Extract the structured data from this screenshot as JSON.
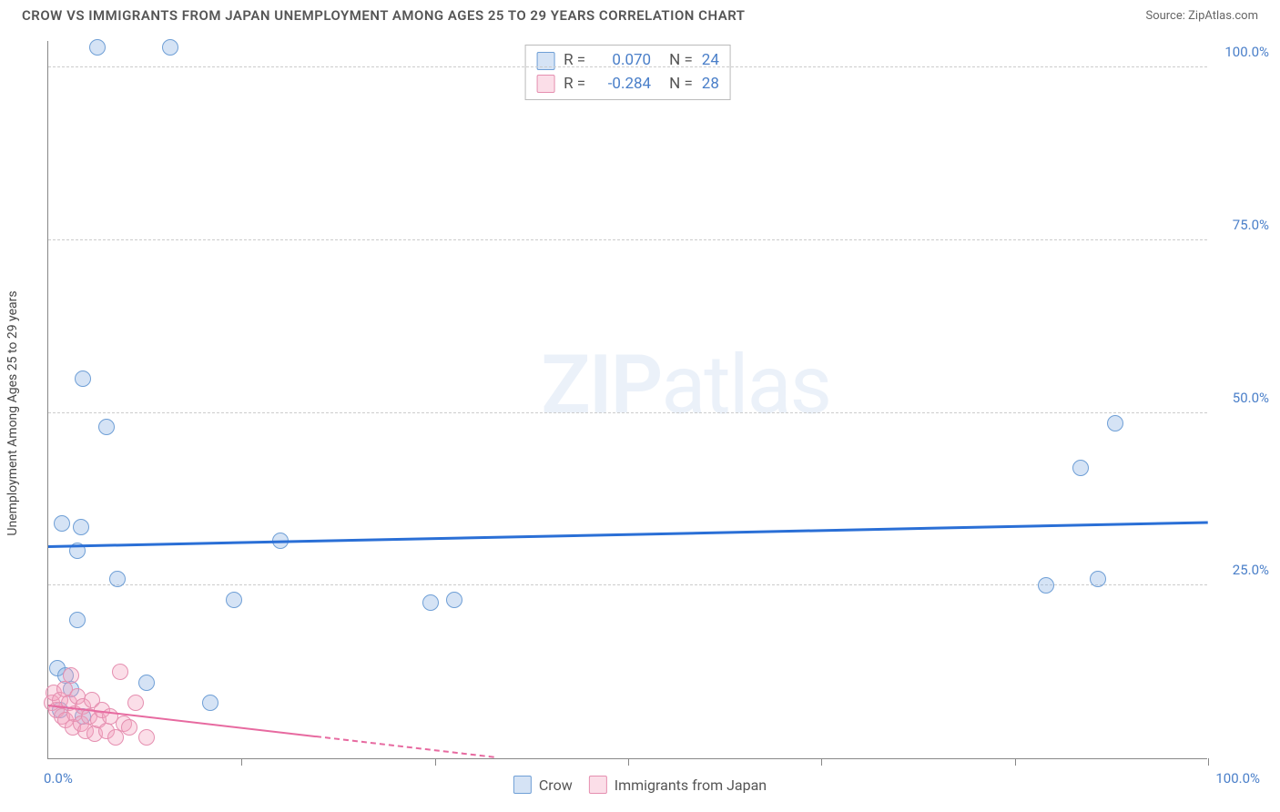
{
  "title": "CROW VS IMMIGRANTS FROM JAPAN UNEMPLOYMENT AMONG AGES 25 TO 29 YEARS CORRELATION CHART",
  "source_label": "Source: ZipAtlas.com",
  "ylabel": "Unemployment Among Ages 25 to 29 years",
  "watermark_bold": "ZIP",
  "watermark_light": "atlas",
  "chart": {
    "type": "scatter",
    "xlim": [
      0,
      100
    ],
    "ylim": [
      0,
      104
    ],
    "background_color": "#ffffff",
    "grid_color": "#cccccc",
    "axis_color": "#888888",
    "tick_color": "#4a7fc9",
    "yticks": [
      {
        "val": 25,
        "label": "25.0%"
      },
      {
        "val": 50,
        "label": "50.0%"
      },
      {
        "val": 75,
        "label": "75.0%"
      },
      {
        "val": 100,
        "label": "100.0%"
      }
    ],
    "xtick_marks": [
      16.67,
      33.33,
      50,
      66.67,
      83.33,
      100
    ],
    "xtick_left": "0.0%",
    "xtick_right": "100.0%"
  },
  "series": [
    {
      "name": "Crow",
      "color_fill": "rgba(135,176,226,0.35)",
      "color_stroke": "#6f9fd6",
      "marker_r": 9,
      "R_label": "R =",
      "R": "0.070",
      "N_label": "N =",
      "N": "24",
      "trend": {
        "y_at_x0": 30.5,
        "y_at_x100": 34.0,
        "color": "#2a6fd6",
        "width": 2.5
      },
      "points": [
        {
          "x": 4.2,
          "y": 103
        },
        {
          "x": 10.5,
          "y": 103
        },
        {
          "x": 3.0,
          "y": 55
        },
        {
          "x": 5.0,
          "y": 48
        },
        {
          "x": 92,
          "y": 48.5
        },
        {
          "x": 89,
          "y": 42
        },
        {
          "x": 1.2,
          "y": 34
        },
        {
          "x": 2.8,
          "y": 33.5
        },
        {
          "x": 2.5,
          "y": 30
        },
        {
          "x": 20,
          "y": 31.5
        },
        {
          "x": 6.0,
          "y": 26
        },
        {
          "x": 16,
          "y": 23
        },
        {
          "x": 33,
          "y": 22.5
        },
        {
          "x": 35,
          "y": 23
        },
        {
          "x": 86,
          "y": 25
        },
        {
          "x": 90.5,
          "y": 26
        },
        {
          "x": 2.5,
          "y": 20
        },
        {
          "x": 0.8,
          "y": 13
        },
        {
          "x": 1.5,
          "y": 12
        },
        {
          "x": 2.0,
          "y": 10
        },
        {
          "x": 8.5,
          "y": 11
        },
        {
          "x": 14,
          "y": 8
        },
        {
          "x": 1.0,
          "y": 7
        },
        {
          "x": 3.0,
          "y": 6
        }
      ]
    },
    {
      "name": "Immigrants from Japan",
      "color_fill": "rgba(244,160,190,0.35)",
      "color_stroke": "#e58fb0",
      "marker_r": 9,
      "R_label": "R =",
      "R": "-0.284",
      "N_label": "N =",
      "N": "28",
      "trend": {
        "y_at_x0": 7.5,
        "y_at_x100": -12,
        "color": "#e76aa0",
        "width": 2
      },
      "points": [
        {
          "x": 0.3,
          "y": 8
        },
        {
          "x": 0.5,
          "y": 9.5
        },
        {
          "x": 0.7,
          "y": 7
        },
        {
          "x": 1.0,
          "y": 8.5
        },
        {
          "x": 1.2,
          "y": 6
        },
        {
          "x": 1.4,
          "y": 10
        },
        {
          "x": 1.5,
          "y": 5.5
        },
        {
          "x": 1.8,
          "y": 8
        },
        {
          "x": 2.0,
          "y": 12
        },
        {
          "x": 2.1,
          "y": 4.5
        },
        {
          "x": 2.3,
          "y": 6.5
        },
        {
          "x": 2.5,
          "y": 9
        },
        {
          "x": 2.8,
          "y": 5
        },
        {
          "x": 3.0,
          "y": 7.5
        },
        {
          "x": 3.2,
          "y": 4
        },
        {
          "x": 3.5,
          "y": 6
        },
        {
          "x": 3.8,
          "y": 8.5
        },
        {
          "x": 4.0,
          "y": 3.5
        },
        {
          "x": 4.3,
          "y": 5.5
        },
        {
          "x": 4.6,
          "y": 7
        },
        {
          "x": 5.0,
          "y": 4
        },
        {
          "x": 5.3,
          "y": 6
        },
        {
          "x": 5.8,
          "y": 3
        },
        {
          "x": 6.2,
          "y": 12.5
        },
        {
          "x": 6.5,
          "y": 5
        },
        {
          "x": 7.0,
          "y": 4.5
        },
        {
          "x": 7.5,
          "y": 8
        },
        {
          "x": 8.5,
          "y": 3
        }
      ]
    }
  ],
  "legend_bottom": [
    {
      "swatch_fill": "rgba(135,176,226,0.35)",
      "swatch_stroke": "#6f9fd6",
      "label": "Crow"
    },
    {
      "swatch_fill": "rgba(244,160,190,0.35)",
      "swatch_stroke": "#e58fb0",
      "label": "Immigrants from Japan"
    }
  ]
}
